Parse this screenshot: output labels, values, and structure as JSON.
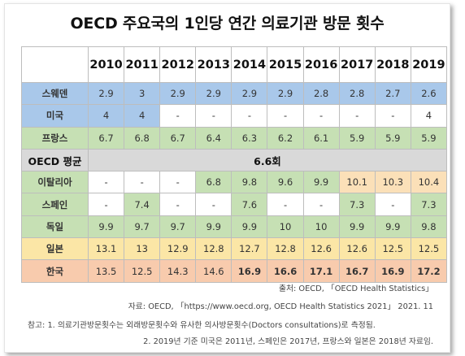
{
  "title": "OECD 주요국의 1인당 연간 의료기관 방문 횟수",
  "years": [
    "2010",
    "2011",
    "2012",
    "2013",
    "2014",
    "2015",
    "2016",
    "2017",
    "2018",
    "2019"
  ],
  "colors": {
    "sweden": "#a9c8ea",
    "usa": "#a9c8ea",
    "france": "#c6e0b4",
    "italy": "#c6e0b4",
    "spain": "#c6e0b4",
    "germany": "#c6e0b4",
    "japan": "#fbe6a6",
    "korea": "#f8cbad",
    "avg": "#d9d9d9",
    "corner": "#dedede"
  },
  "rows": [
    {
      "country": "스웨덴",
      "group": "sweden",
      "values": [
        "2.9",
        "3",
        "2.9",
        "2.9",
        "2.9",
        "2.9",
        "2.8",
        "2.8",
        "2.7",
        "2.6"
      ],
      "colored": [
        true,
        true,
        true,
        true,
        true,
        true,
        true,
        true,
        true,
        true
      ],
      "bold": [
        false,
        false,
        false,
        false,
        false,
        false,
        false,
        false,
        false,
        false
      ]
    },
    {
      "country": "미국",
      "group": "usa",
      "values": [
        "4",
        "4",
        "-",
        "-",
        "-",
        "-",
        "-",
        "-",
        "-",
        "4"
      ],
      "colored": [
        true,
        true,
        false,
        false,
        false,
        false,
        false,
        false,
        false,
        false
      ],
      "bold": [
        false,
        false,
        false,
        false,
        false,
        false,
        false,
        false,
        false,
        false
      ]
    },
    {
      "country": "프랑스",
      "group": "france",
      "values": [
        "6.7",
        "6.8",
        "6.7",
        "6.4",
        "6.3",
        "6.2",
        "6.1",
        "5.9",
        "5.9",
        "5.9"
      ],
      "colored": [
        true,
        true,
        true,
        true,
        true,
        true,
        true,
        true,
        true,
        true
      ],
      "bold": [
        false,
        false,
        false,
        false,
        false,
        false,
        false,
        false,
        false,
        false
      ]
    },
    {
      "country": "OECD 평균",
      "group": "avg",
      "avg": "6.6회"
    },
    {
      "country": "이탈리아",
      "group": "italy",
      "values": [
        "-",
        "-",
        "-",
        "6.8",
        "9.8",
        "9.6",
        "9.9",
        "10.1",
        "10.3",
        "10.4"
      ],
      "colored": [
        false,
        false,
        false,
        true,
        true,
        true,
        true,
        true,
        true,
        true
      ],
      "bold": [
        false,
        false,
        false,
        false,
        false,
        false,
        false,
        false,
        false,
        false
      ]
    },
    {
      "country": "스페인",
      "group": "spain",
      "values": [
        "-",
        "7.4",
        "-",
        "-",
        "7.6",
        "-",
        "-",
        "7.3",
        "-",
        "7.3"
      ],
      "colored": [
        false,
        true,
        false,
        false,
        true,
        false,
        false,
        true,
        false,
        true
      ],
      "bold": [
        false,
        false,
        false,
        false,
        false,
        false,
        false,
        false,
        false,
        false
      ]
    },
    {
      "country": "독일",
      "group": "germany",
      "values": [
        "9.9",
        "9.7",
        "9.7",
        "9.9",
        "9.9",
        "10",
        "10",
        "9.9",
        "9.9",
        "9.8"
      ],
      "colored": [
        true,
        true,
        true,
        true,
        true,
        true,
        true,
        true,
        true,
        true
      ],
      "bold": [
        false,
        false,
        false,
        false,
        false,
        false,
        false,
        false,
        false,
        false
      ]
    },
    {
      "country": "일본",
      "group": "japan",
      "values": [
        "13.1",
        "13",
        "12.9",
        "12.8",
        "12.7",
        "12.8",
        "12.6",
        "12.6",
        "12.5",
        "12.5"
      ],
      "colored": [
        true,
        true,
        true,
        true,
        true,
        true,
        true,
        true,
        true,
        true
      ],
      "bold": [
        false,
        false,
        false,
        false,
        false,
        false,
        false,
        false,
        false,
        false
      ]
    },
    {
      "country": "한국",
      "group": "korea",
      "values": [
        "13.5",
        "12.5",
        "14.3",
        "14.6",
        "16.9",
        "16.6",
        "17.1",
        "16.7",
        "16.9",
        "17.2"
      ],
      "colored": [
        true,
        true,
        true,
        true,
        true,
        true,
        true,
        true,
        true,
        true
      ],
      "bold": [
        false,
        false,
        false,
        false,
        true,
        true,
        true,
        true,
        true,
        true
      ]
    }
  ],
  "italy_overrides": {
    "colored_orange_from": 7
  },
  "notes": {
    "source": "출처: OECD, 「OECD Health Statistics」",
    "reference": "자료: OECD, 「https://www.oecd.org, OECD Health Statistics 2021」 2021. 11",
    "note1": "참고: 1. 의료기관방문횟수는 외래방문횟수와 유사한 의사방문횟수(Doctors consultations)로 측정됨.",
    "note2": "2. 2019년 기준 미국은 2011년, 스페인은 2017년, 프랑스와 일본은 2018년 자료임."
  }
}
